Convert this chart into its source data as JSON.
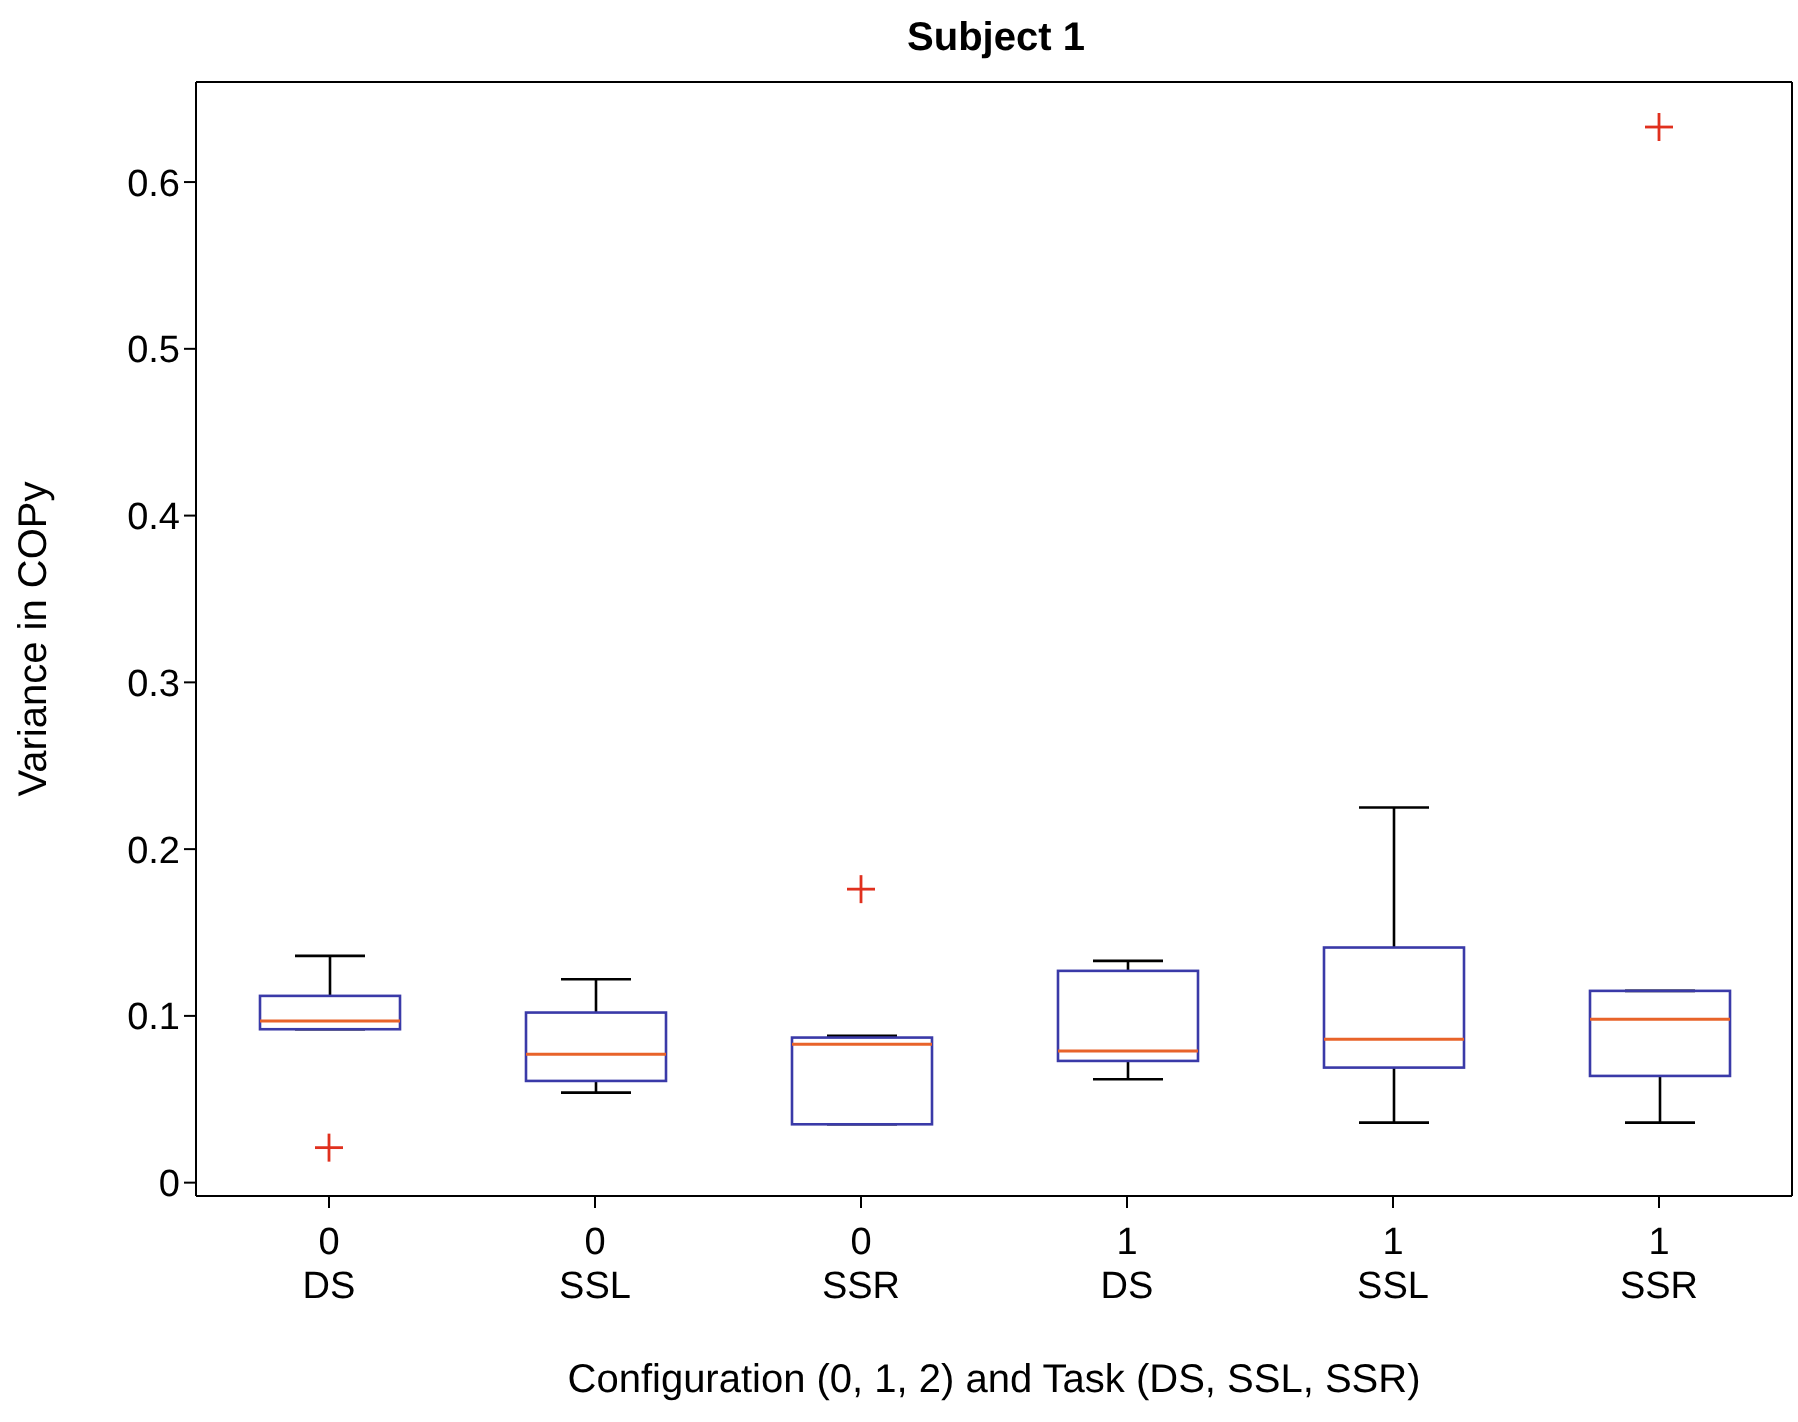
{
  "chart_data": {
    "type": "box",
    "title": "Subject 1",
    "xlabel": "Configuration (0, 1, 2) and Task (DS, SSL, SSR)",
    "ylabel": "Variance in COPy",
    "categories": [
      "0\nDS",
      "0\nSSL",
      "0\nSSR",
      "1\nDS",
      "1\nSSL",
      "1\nSSR"
    ],
    "series": [
      {
        "color": "#3a3aa8",
        "boxes": [
          {
            "low": 0.092,
            "q1": 0.092,
            "median": 0.097,
            "q3": 0.112,
            "high": 0.136,
            "outliers": [
              0.021
            ]
          },
          {
            "low": 0.054,
            "q1": 0.061,
            "median": 0.077,
            "q3": 0.102,
            "high": 0.122
          },
          {
            "low": 0.035,
            "q1": 0.035,
            "median": 0.083,
            "q3": 0.087,
            "high": 0.088,
            "outliers": [
              0.176
            ]
          },
          {
            "low": 0.062,
            "q1": 0.073,
            "median": 0.079,
            "q3": 0.127,
            "high": 0.133
          },
          {
            "low": 0.036,
            "q1": 0.069,
            "median": 0.086,
            "q3": 0.141,
            "high": 0.225
          },
          {
            "low": 0.036,
            "q1": 0.064,
            "median": 0.098,
            "q3": 0.115,
            "high": 0.115,
            "outliers": [
              0.633
            ]
          }
        ]
      }
    ],
    "ylim": [
      -0.008,
      0.66
    ],
    "yticks": [
      0,
      0.1,
      0.2,
      0.3,
      0.4,
      0.5,
      0.6
    ],
    "grid": false,
    "legend": false
  }
}
